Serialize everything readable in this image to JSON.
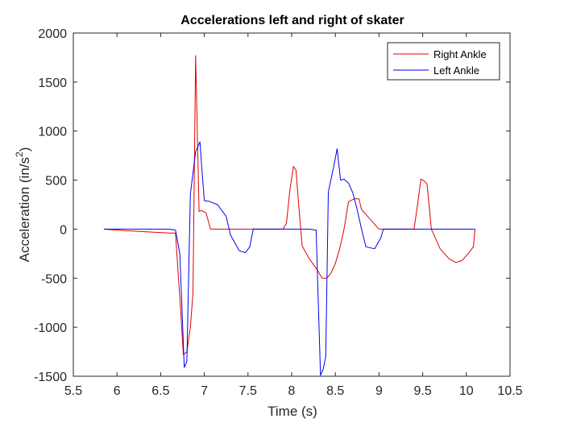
{
  "chart_data": {
    "type": "line",
    "title": "Accelerations left and right of skater",
    "xlabel": "Time (s)",
    "ylabel": "Acceleration (in/s",
    "ylabel_superscript": "2",
    "ylabel_suffix": ")",
    "xlim": [
      5.5,
      10.5
    ],
    "ylim": [
      -1500,
      2000
    ],
    "xticks": [
      5.5,
      6,
      6.5,
      7,
      7.5,
      8,
      8.5,
      9,
      9.5,
      10,
      10.5
    ],
    "xtick_labels": [
      "5.5",
      "6",
      "6.5",
      "7",
      "7.5",
      "8",
      "8.5",
      "9",
      "9.5",
      "10",
      "10.5"
    ],
    "yticks": [
      -1500,
      -1000,
      -500,
      0,
      500,
      1000,
      1500,
      2000
    ],
    "ytick_labels": [
      "-1500",
      "-1000",
      "-500",
      "0",
      "500",
      "1000",
      "1500",
      "2000"
    ],
    "grid": false,
    "legend_position": "top-right",
    "series": [
      {
        "name": "Right Ankle",
        "color": "#e00000",
        "x": [
          5.85,
          6.0,
          6.2,
          6.4,
          6.6,
          6.67,
          6.72,
          6.76,
          6.8,
          6.84,
          6.87,
          6.9,
          6.94,
          6.97,
          7.02,
          7.07,
          7.3,
          7.6,
          7.9,
          7.94,
          7.98,
          8.02,
          8.05,
          8.08,
          8.12,
          8.2,
          8.28,
          8.35,
          8.4,
          8.45,
          8.5,
          8.55,
          8.6,
          8.65,
          8.72,
          8.77,
          8.8,
          9.0,
          9.4,
          9.44,
          9.48,
          9.52,
          9.55,
          9.6,
          9.7,
          9.8,
          9.88,
          9.95,
          10.03,
          10.08,
          10.1
        ],
        "y": [
          0,
          -10,
          -20,
          -30,
          -40,
          -40,
          -700,
          -1280,
          -1250,
          -1000,
          -650,
          1770,
          180,
          190,
          165,
          0,
          0,
          0,
          0,
          60,
          400,
          640,
          600,
          250,
          -170,
          -300,
          -400,
          -500,
          -500,
          -450,
          -350,
          -200,
          0,
          280,
          310,
          310,
          200,
          0,
          0,
          240,
          510,
          490,
          460,
          0,
          -200,
          -300,
          -340,
          -320,
          -240,
          -180,
          0
        ]
      },
      {
        "name": "Left Ankle",
        "color": "#0000ee",
        "x": [
          5.85,
          6.2,
          6.6,
          6.67,
          6.72,
          6.77,
          6.8,
          6.84,
          6.9,
          6.95,
          6.97,
          7.0,
          7.05,
          7.15,
          7.25,
          7.3,
          7.4,
          7.47,
          7.52,
          7.56,
          7.6,
          7.9,
          8.2,
          8.28,
          8.3,
          8.33,
          8.36,
          8.39,
          8.42,
          8.48,
          8.52,
          8.56,
          8.6,
          8.65,
          8.7,
          8.75,
          8.8,
          8.85,
          8.95,
          9.02,
          9.05,
          9.1,
          9.5,
          10.1
        ],
        "y": [
          0,
          0,
          0,
          -10,
          -250,
          -1410,
          -1350,
          360,
          790,
          890,
          640,
          290,
          285,
          250,
          130,
          -60,
          -220,
          -240,
          -180,
          0,
          0,
          0,
          0,
          -10,
          -600,
          -1490,
          -1430,
          -1300,
          380,
          630,
          820,
          500,
          510,
          470,
          370,
          200,
          0,
          -180,
          -200,
          -90,
          0,
          0,
          0,
          0
        ]
      }
    ]
  }
}
